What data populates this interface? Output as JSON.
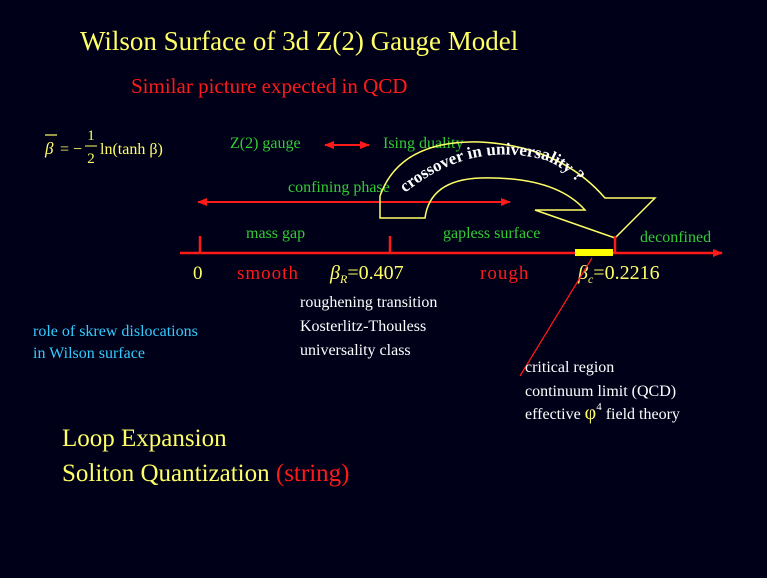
{
  "title": "Wilson Surface of 3d Z(2) Gauge Model",
  "subtitle": "Similar picture expected in QCD",
  "formula": {
    "lhs": "β",
    "sign": "= −",
    "numerator": "1",
    "denominator": "2",
    "rhs": "ln(tanh β)"
  },
  "duality": {
    "left": "Z(2) gauge",
    "right": "Ising duality"
  },
  "confining_phase": "confining phase",
  "crossover": "crossover in universality ?",
  "mass_gap": "mass gap",
  "gapless_surface": "gapless surface",
  "deconfined": "deconfined",
  "axis": {
    "zero": "0",
    "smooth": "smooth",
    "beta_r": {
      "symbol": "β",
      "sub": "R",
      "value": "=0.407"
    },
    "rough": "rough",
    "beta_c": {
      "symbol": "β",
      "sub": "c",
      "value": "=0.2216"
    }
  },
  "roughening": [
    "roughening transition",
    "Kosterlitz-Thouless",
    "universality class"
  ],
  "dislocations": [
    "role of skrew dislocations",
    "in Wilson surface"
  ],
  "critical": {
    "lines": [
      "critical region",
      "continuum limit (QCD)"
    ],
    "effective": {
      "before": "effective ",
      "phi": "φ",
      "power": "4",
      "after": " field theory"
    }
  },
  "bottom": {
    "line1": "Loop Expansion",
    "line2": "Soliton Quantization",
    "line2_red": " (string)"
  }
}
